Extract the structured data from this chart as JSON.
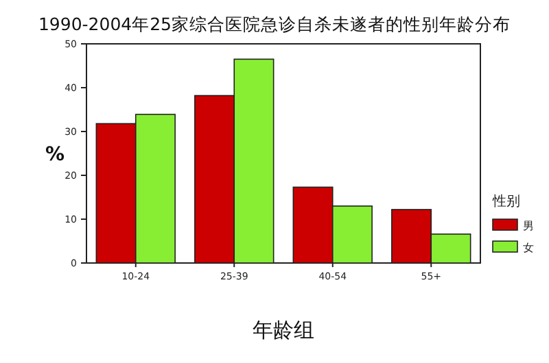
{
  "chart_data": {
    "type": "bar",
    "title": "1990-2004年25家综合医院急诊自杀未遂者的性别年龄分布",
    "xlabel": "年龄组",
    "ylabel": "%",
    "legend_title": "性别",
    "categories": [
      "10-24",
      "25-39",
      "40-54",
      "55+"
    ],
    "series": [
      {
        "name": "男",
        "color": "#cc0000",
        "values": [
          31.8,
          38.2,
          17.3,
          12.2
        ]
      },
      {
        "name": "女",
        "color": "#88ee33",
        "values": [
          33.9,
          46.5,
          13.0,
          6.6
        ]
      }
    ],
    "ylim": [
      0,
      50
    ],
    "yticks": [
      0,
      10,
      20,
      30,
      40,
      50
    ],
    "grid": false,
    "legend": "right"
  }
}
